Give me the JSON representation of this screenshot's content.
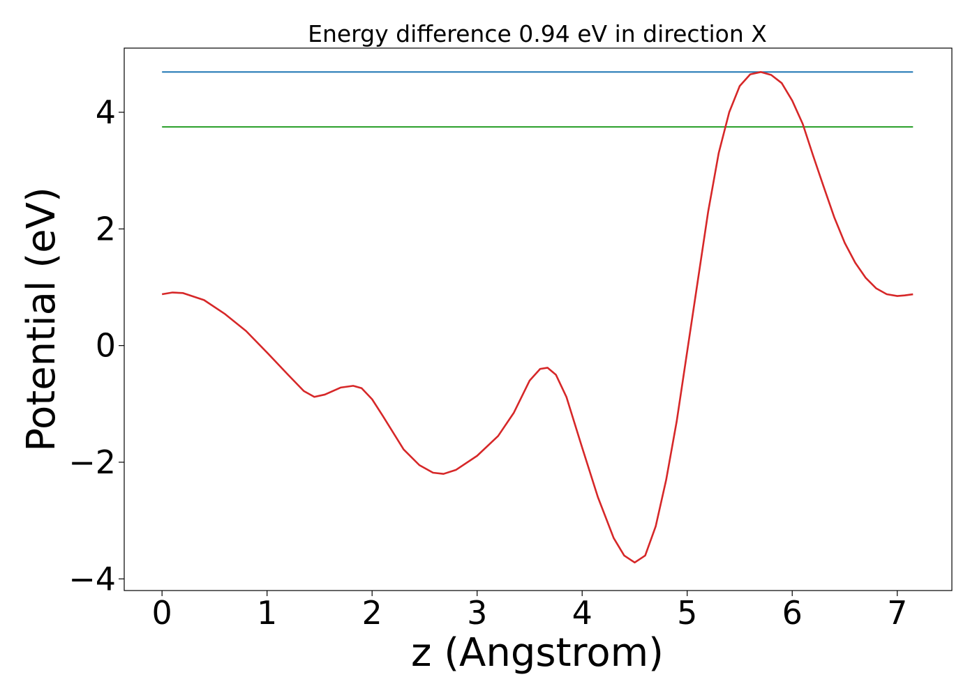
{
  "chart_data": {
    "type": "line",
    "title": "Energy difference 0.94 eV in direction X",
    "xlabel": "z (Angstrom)",
    "ylabel": "Potential (eV)",
    "xlim": [
      -0.36,
      7.52
    ],
    "ylim": [
      -4.2,
      5.1
    ],
    "grid": false,
    "x_ticks": [
      0,
      1,
      2,
      3,
      4,
      5,
      6,
      7
    ],
    "x_tick_labels": [
      "0",
      "1",
      "2",
      "3",
      "4",
      "5",
      "6",
      "7"
    ],
    "y_ticks": [
      -4,
      -2,
      0,
      2,
      4
    ],
    "y_tick_labels": [
      "−4",
      "−2",
      "0",
      "2",
      "4"
    ],
    "series": [
      {
        "color": "#1f77b4",
        "x": [
          0,
          7.15
        ],
        "y": [
          4.69,
          4.69
        ]
      },
      {
        "color": "#2ca02c",
        "x": [
          0,
          7.15
        ],
        "y": [
          3.75,
          3.75
        ]
      },
      {
        "color": "#d62728",
        "x": [
          0,
          0.1,
          0.2,
          0.4,
          0.6,
          0.8,
          1.0,
          1.2,
          1.35,
          1.45,
          1.55,
          1.7,
          1.82,
          1.9,
          2.0,
          2.1,
          2.3,
          2.45,
          2.58,
          2.68,
          2.8,
          3.0,
          3.2,
          3.35,
          3.5,
          3.6,
          3.67,
          3.75,
          3.85,
          4.0,
          4.15,
          4.3,
          4.4,
          4.5,
          4.6,
          4.7,
          4.8,
          4.9,
          5.0,
          5.1,
          5.2,
          5.3,
          5.4,
          5.5,
          5.6,
          5.7,
          5.8,
          5.9,
          6.0,
          6.1,
          6.2,
          6.3,
          6.4,
          6.5,
          6.6,
          6.7,
          6.8,
          6.9,
          7.0,
          7.07,
          7.15
        ],
        "y": [
          0.88,
          0.91,
          0.9,
          0.78,
          0.54,
          0.25,
          -0.12,
          -0.5,
          -0.78,
          -0.88,
          -0.84,
          -0.72,
          -0.69,
          -0.73,
          -0.92,
          -1.2,
          -1.78,
          -2.05,
          -2.18,
          -2.2,
          -2.13,
          -1.89,
          -1.55,
          -1.15,
          -0.6,
          -0.4,
          -0.38,
          -0.5,
          -0.88,
          -1.75,
          -2.6,
          -3.3,
          -3.6,
          -3.72,
          -3.6,
          -3.1,
          -2.3,
          -1.3,
          -0.1,
          1.1,
          2.3,
          3.3,
          4.0,
          4.45,
          4.65,
          4.69,
          4.64,
          4.5,
          4.2,
          3.8,
          3.25,
          2.72,
          2.2,
          1.76,
          1.42,
          1.16,
          0.98,
          0.88,
          0.85,
          0.86,
          0.88
        ]
      }
    ]
  }
}
